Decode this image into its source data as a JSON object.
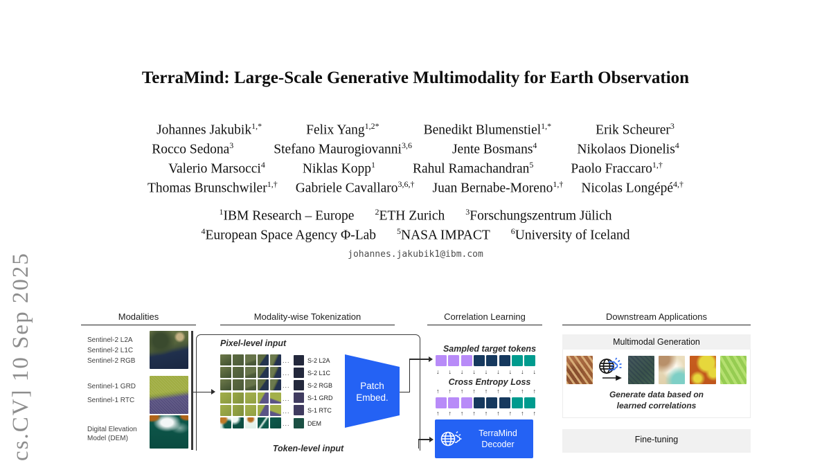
{
  "arxiv_watermark": "cs.CV]  10 Sep 2025",
  "paper": {
    "title": "TerraMind: Large-Scale Generative Multimodality for Earth Observation",
    "author_rows": [
      [
        {
          "name": "Johannes Jakubik",
          "sup": "1,*"
        },
        {
          "name": "Felix Yang",
          "sup": "1,2*"
        },
        {
          "name": "Benedikt Blumenstiel",
          "sup": "1,*"
        },
        {
          "name": "Erik Scheurer",
          "sup": "3"
        }
      ],
      [
        {
          "name": "Rocco Sedona",
          "sup": "3"
        },
        {
          "name": "Stefano Maurogiovanni",
          "sup": "3,6"
        },
        {
          "name": "Jente Bosmans",
          "sup": "4"
        },
        {
          "name": "Nikolaos Dionelis",
          "sup": "4"
        }
      ],
      [
        {
          "name": "Valerio Marsocci",
          "sup": "4"
        },
        {
          "name": "Niklas Kopp",
          "sup": "1"
        },
        {
          "name": "Rahul Ramachandran",
          "sup": "5"
        },
        {
          "name": "Paolo Fraccaro",
          "sup": "1,†"
        }
      ],
      [
        {
          "name": "Thomas Brunschwiler",
          "sup": "1,†"
        },
        {
          "name": "Gabriele Cavallaro",
          "sup": "3,6,†"
        },
        {
          "name": "Juan Bernabe-Moreno",
          "sup": "1,†"
        },
        {
          "name": "Nicolas Longépé",
          "sup": "4,†"
        }
      ]
    ],
    "affiliation_rows": [
      [
        {
          "sup": "1",
          "text": "IBM Research – Europe"
        },
        {
          "sup": "2",
          "text": "ETH Zurich"
        },
        {
          "sup": "3",
          "text": "Forschungszentrum Jülich"
        }
      ],
      [
        {
          "sup": "4",
          "text": "European Space Agency Φ-Lab"
        },
        {
          "sup": "5",
          "text": "NASA IMPACT"
        },
        {
          "sup": "6",
          "text": "University of Iceland"
        }
      ]
    ],
    "email": "johannes.jakubik1@ibm.com"
  },
  "figure": {
    "columns": {
      "modalities": "Modalities",
      "tokenization": "Modality-wise Tokenization",
      "correlation": "Correlation Learning",
      "downstream": "Downstream Applications"
    },
    "modalities": [
      {
        "labels": [
          "Sentinel-2 L2A",
          "Sentinel-2 L1C",
          "Sentinel-2 RGB"
        ],
        "image": "s2"
      },
      {
        "labels": [
          "Sentinel-1 GRD",
          "Sentinel-1 RTC"
        ],
        "image": "s1"
      },
      {
        "labels": [
          "Digital Elevation",
          "Model (DEM)"
        ],
        "image": "dem"
      }
    ],
    "tokenization": {
      "pixel_heading": "Pixel-level input",
      "token_heading": "Token-level input",
      "ellipsis": "...",
      "rows": [
        {
          "label": "S-2 L2A",
          "type": "s2"
        },
        {
          "label": "S-2 L1C",
          "type": "s2"
        },
        {
          "label": "S-2 RGB",
          "type": "s2"
        },
        {
          "label": "S-1 GRD",
          "type": "s1"
        },
        {
          "label": "S-1 RTC",
          "type": "s1"
        },
        {
          "label": "DEM",
          "type": "dem"
        }
      ],
      "patch_embed_label": [
        "Patch",
        "Embed."
      ]
    },
    "correlation": {
      "sampled_heading": "Sampled target tokens",
      "loss_label": "Cross Entropy Loss",
      "token_colors": [
        "purple",
        "purple",
        "purple",
        "navy",
        "navy",
        "navy",
        "teal",
        "teal"
      ],
      "decoder_label": [
        "TerraMind",
        "Decoder"
      ]
    },
    "downstream": {
      "generation_title": "Multimodal Generation",
      "generation_caption": [
        "Generate data based on",
        "learned correlations"
      ],
      "finetuning_title": "Fine-tuning"
    },
    "colors": {
      "purple": "#b88bf8",
      "navy": "#16395e",
      "teal": "#009b8e",
      "accent_blue": "#2462f4",
      "band_gray": "#f1f1f1"
    }
  }
}
